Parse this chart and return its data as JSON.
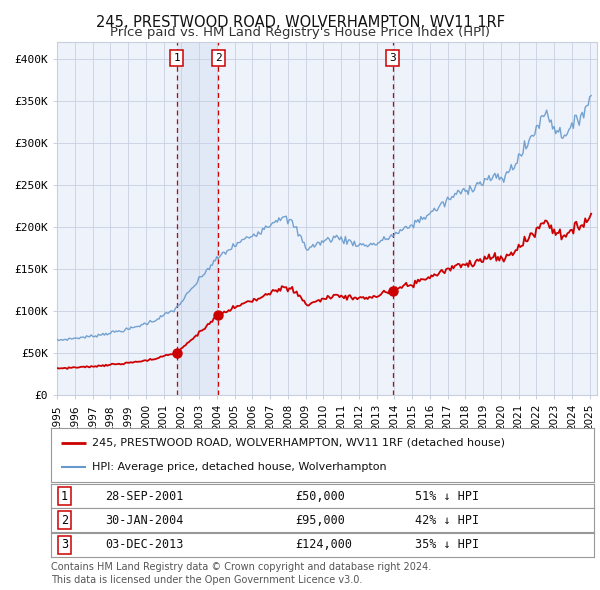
{
  "title": "245, PRESTWOOD ROAD, WOLVERHAMPTON, WV11 1RF",
  "subtitle": "Price paid vs. HM Land Registry's House Price Index (HPI)",
  "title_fontsize": 10.5,
  "subtitle_fontsize": 9.5,
  "bg_color": "#ffffff",
  "plot_bg_color": "#eef2fa",
  "grid_color": "#c8d0e0",
  "hpi_color": "#6699cc",
  "price_color": "#cc0000",
  "highlight_color": "#dce8f8",
  "sale_dates": [
    "2001-09-28",
    "2004-01-30",
    "2013-12-03"
  ],
  "sale_prices": [
    50000,
    95000,
    124000
  ],
  "sale_labels": [
    "1",
    "2",
    "3"
  ],
  "legend_price_label": "245, PRESTWOOD ROAD, WOLVERHAMPTON, WV11 1RF (detached house)",
  "legend_hpi_label": "HPI: Average price, detached house, Wolverhampton",
  "table_rows": [
    [
      "1",
      "28-SEP-2001",
      "£50,000",
      "51% ↓ HPI"
    ],
    [
      "2",
      "30-JAN-2004",
      "£95,000",
      "42% ↓ HPI"
    ],
    [
      "3",
      "03-DEC-2013",
      "£124,000",
      "35% ↓ HPI"
    ]
  ],
  "footer_text": "Contains HM Land Registry data © Crown copyright and database right 2024.\nThis data is licensed under the Open Government Licence v3.0.",
  "ylim": [
    0,
    420000
  ],
  "yticks": [
    0,
    50000,
    100000,
    150000,
    200000,
    250000,
    300000,
    350000,
    400000
  ],
  "ytick_labels": [
    "£0",
    "£50K",
    "£100K",
    "£150K",
    "£200K",
    "£250K",
    "£300K",
    "£350K",
    "£400K"
  ]
}
